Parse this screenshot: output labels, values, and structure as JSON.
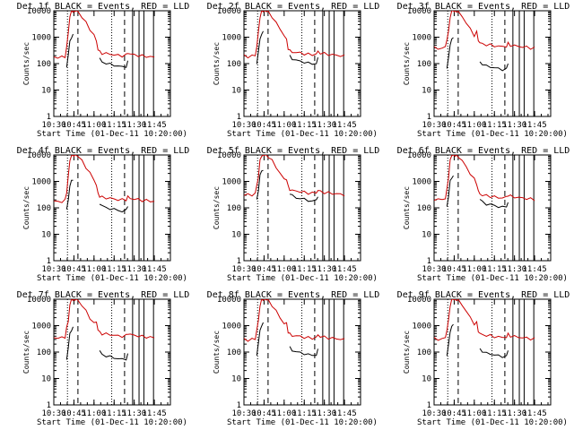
{
  "colors": {
    "events": "#000000",
    "lld": "#cc0000",
    "axes": "#000000"
  },
  "chart_data": [
    {
      "type": "line",
      "title": "Det 1f BLACK = Events, RED = LLD",
      "xlabel": "Start Time (01-Dec-11 10:20:00)",
      "ylabel": "Counts/sec",
      "ylog": true,
      "ylim": [
        1,
        10000
      ],
      "xlim_minutes": [
        10.5,
        11.95
      ],
      "xticks": [
        "10:30",
        "10:45",
        "11:00",
        "11:15",
        "11:30",
        "11:45"
      ],
      "yticks": [
        "1",
        "10",
        "100",
        "1000",
        "10000"
      ]
    },
    {
      "type": "line",
      "title": "Det 2f BLACK = Events, RED = LLD",
      "xlabel": "Start Time (01-Dec-11 10:20:00)",
      "ylabel": "Counts/sec",
      "ylog": true,
      "ylim": [
        1,
        10000
      ],
      "xticks": [
        "10:30",
        "10:45",
        "11:00",
        "11:15",
        "11:30",
        "11:45"
      ],
      "yticks": [
        "1",
        "10",
        "100",
        "1000",
        "10000"
      ]
    },
    {
      "type": "line",
      "title": "Det 3f BLACK = Events, RED = LLD",
      "xlabel": "Start Time (01-Dec-11 10:20:00)",
      "ylabel": "Counts/sec",
      "ylog": true,
      "ylim": [
        1,
        10000
      ],
      "xticks": [
        "10:30",
        "10:45",
        "11:00",
        "11:15",
        "11:30",
        "11:45"
      ],
      "yticks": [
        "1",
        "10",
        "100",
        "1000",
        "10000"
      ]
    },
    {
      "type": "line",
      "title": "Det 4f BLACK = Events, RED = LLD",
      "xlabel": "Start Time (01-Dec-11 10:20:00)",
      "ylabel": "Counts/sec",
      "ylog": true,
      "ylim": [
        1,
        10000
      ],
      "xticks": [
        "10:30",
        "10:45",
        "11:00",
        "11:15",
        "11:30",
        "11:45"
      ],
      "yticks": [
        "1",
        "10",
        "100",
        "1000",
        "10000"
      ]
    },
    {
      "type": "line",
      "title": "Det 5f BLACK = Events, RED = LLD",
      "xlabel": "Start Time (01-Dec-11 10:20:00)",
      "ylabel": "Counts/sec",
      "ylog": true,
      "ylim": [
        1,
        10000
      ],
      "xticks": [
        "10:30",
        "10:45",
        "11:00",
        "11:15",
        "11:30",
        "11:45"
      ],
      "yticks": [
        "1",
        "10",
        "100",
        "1000",
        "10000"
      ]
    },
    {
      "type": "line",
      "title": "Det 6f BLACK = Events, RED = LLD",
      "xlabel": "Start Time (01-Dec-11 10:20:00)",
      "ylabel": "Counts/sec",
      "ylog": true,
      "ylim": [
        1,
        10000
      ],
      "xticks": [
        "10:30",
        "10:45",
        "11:00",
        "11:15",
        "11:30",
        "11:45"
      ],
      "yticks": [
        "1",
        "10",
        "100",
        "1000",
        "10000"
      ]
    },
    {
      "type": "line",
      "title": "Det 7f BLACK = Events, RED = LLD",
      "xlabel": "Start Time (01-Dec-11 10:20:00)",
      "ylabel": "Counts/sec",
      "ylog": true,
      "ylim": [
        1,
        10000
      ],
      "xticks": [
        "10:30",
        "10:45",
        "11:00",
        "11:15",
        "11:30",
        "11:45"
      ],
      "yticks": [
        "1",
        "10",
        "100",
        "1000",
        "10000"
      ]
    },
    {
      "type": "line",
      "title": "Det 8f BLACK = Events, RED = LLD",
      "xlabel": "Start Time (01-Dec-11 10:20:00)",
      "ylabel": "Counts/sec",
      "ylog": true,
      "ylim": [
        1,
        10000
      ],
      "xticks": [
        "10:30",
        "10:45",
        "11:00",
        "11:15",
        "11:30",
        "11:45"
      ],
      "yticks": [
        "1",
        "10",
        "100",
        "1000",
        "10000"
      ]
    },
    {
      "type": "line",
      "title": "Det 9f BLACK = Events, RED = LLD",
      "xlabel": "Start Time (01-Dec-11 10:20:00)",
      "ylabel": "Counts/sec",
      "ylog": true,
      "ylim": [
        1,
        10000
      ],
      "xticks": [
        "10:30",
        "10:45",
        "11:00",
        "11:15",
        "11:30",
        "11:45"
      ],
      "yticks": [
        "1",
        "10",
        "100",
        "1000",
        "10000"
      ]
    }
  ],
  "series_shape": {
    "time_hours": [
      10.5,
      10.55,
      10.6,
      10.64,
      10.66,
      10.68,
      10.7,
      10.72,
      10.74,
      10.75,
      10.76,
      10.78,
      10.8,
      10.85,
      10.9,
      10.95,
      11.0,
      11.03,
      11.05,
      11.07,
      11.1,
      11.15,
      11.2,
      11.25,
      11.3,
      11.35,
      11.4,
      11.42,
      11.45,
      11.5,
      11.55,
      11.6,
      11.65,
      11.7,
      11.75
    ],
    "lld_counts": [
      180,
      170,
      175,
      190,
      400,
      1500,
      6000,
      10000,
      10000,
      10000,
      10000,
      10000,
      9000,
      6000,
      3500,
      2000,
      1200,
      700,
      350,
      280,
      250,
      240,
      230,
      215,
      205,
      200,
      210,
      260,
      230,
      215,
      205,
      195,
      190,
      180,
      175
    ],
    "events_counts": [
      null,
      null,
      null,
      null,
      80,
      200,
      700,
      1000,
      1200,
      null,
      null,
      null,
      null,
      null,
      null,
      null,
      null,
      null,
      null,
      150,
      120,
      100,
      95,
      88,
      80,
      75,
      80,
      120,
      null,
      null,
      null,
      null,
      null,
      null,
      null
    ]
  },
  "markers_hours": {
    "dotted": [
      10.67,
      11.22
    ],
    "dashed": [
      10.8,
      11.38
    ],
    "solid": [
      11.48,
      11.56,
      11.62,
      11.74
    ]
  }
}
